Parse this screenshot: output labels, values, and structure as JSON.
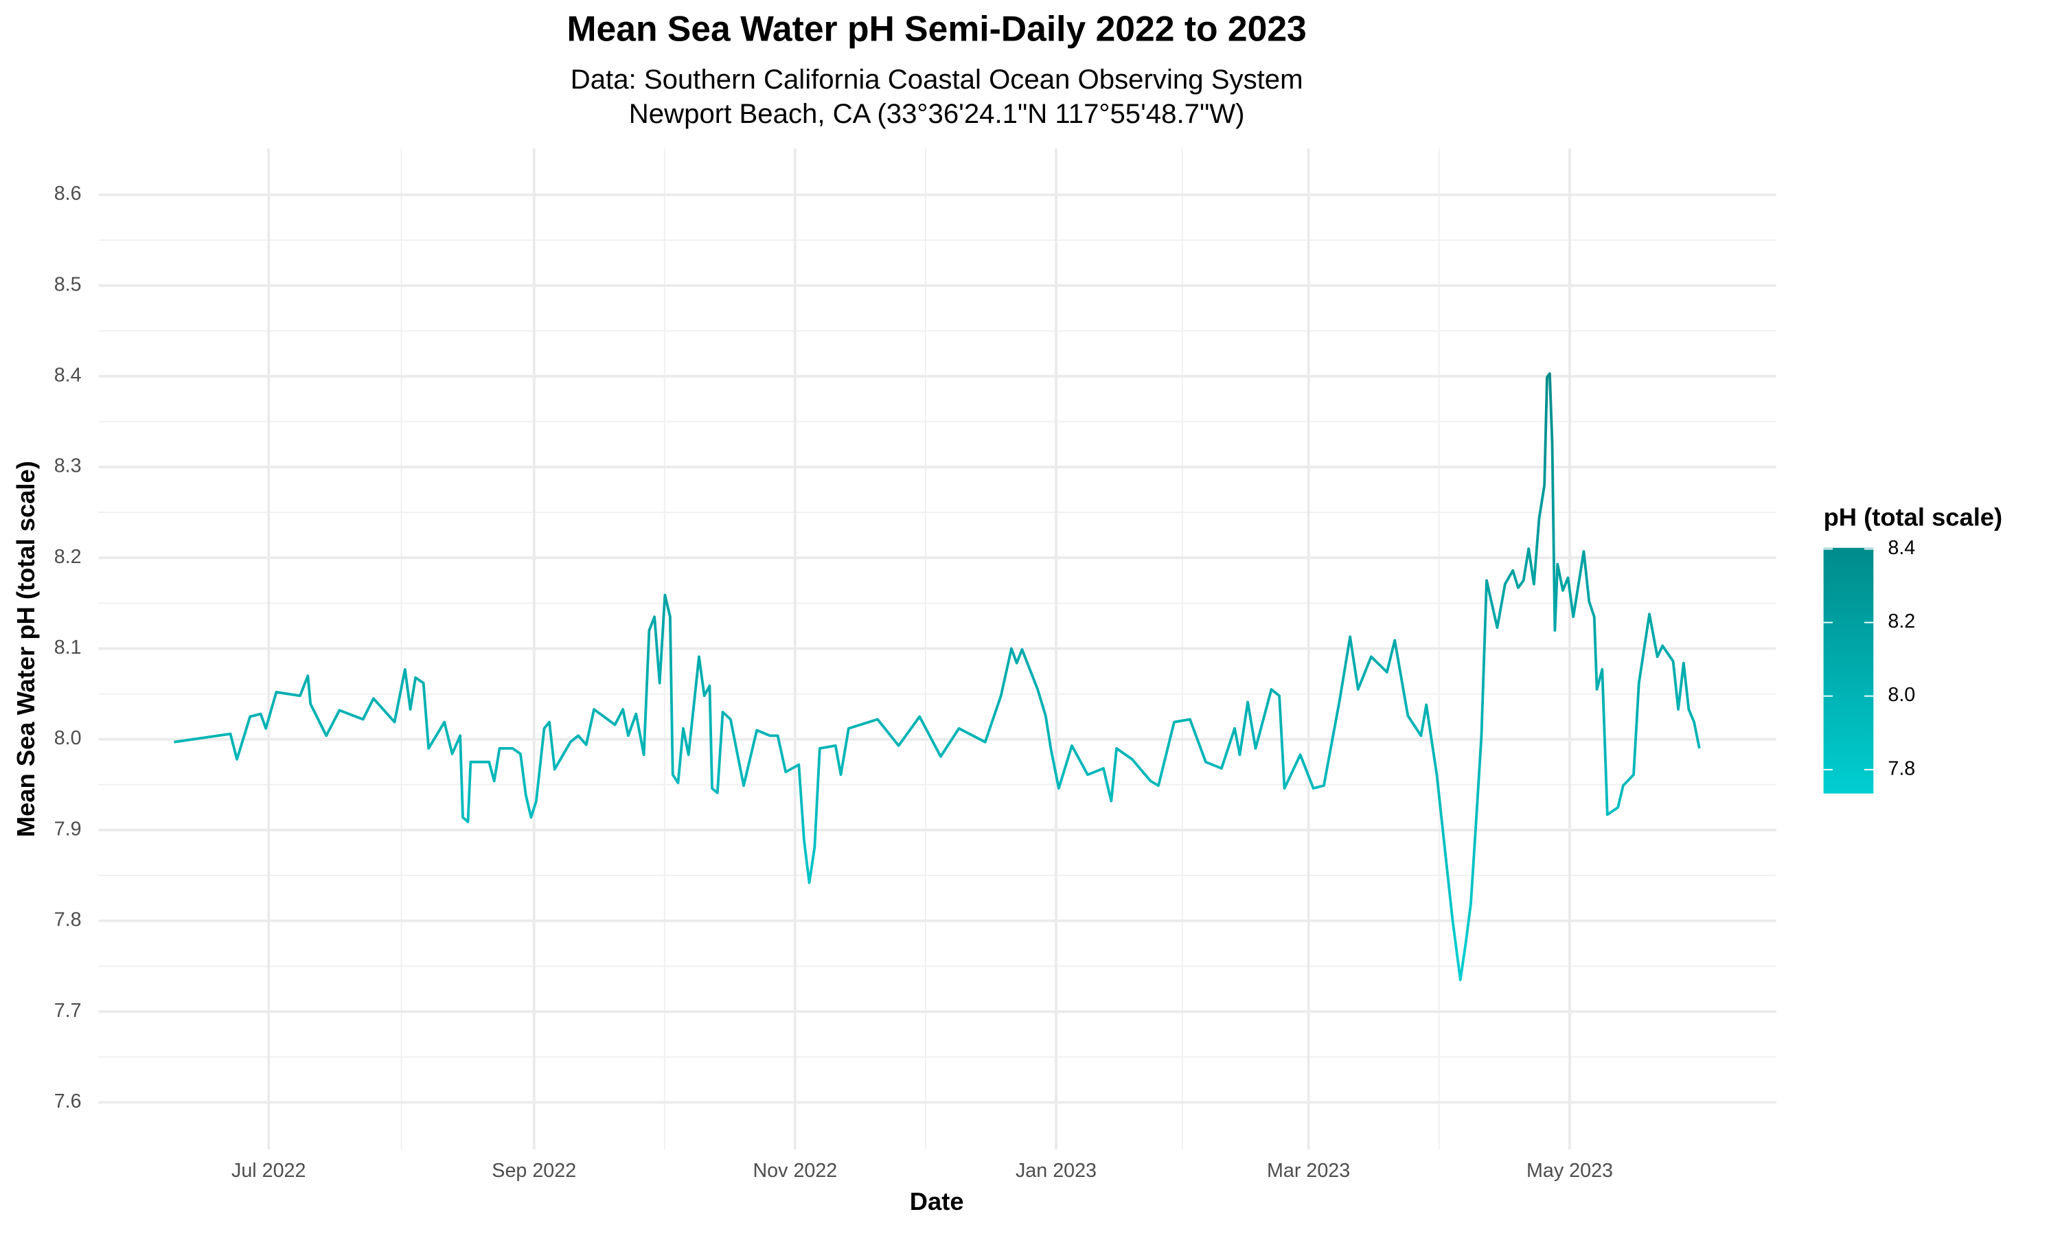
{
  "chart_data": {
    "type": "line",
    "title": "Mean Sea Water pH Semi-Daily 2022 to 2023",
    "subtitle": [
      "Data:  Southern California Coastal Ocean Observing System",
      "Newport Beach, CA (33°36'24.1\"N 117°55'48.7\"W)"
    ],
    "x_label": "Date",
    "y_label": "Mean Sea Water pH (total scale)",
    "legend_title": "pH (total scale)",
    "color_low": "#00CED1",
    "color_high": "#008B8B",
    "color_ticks": [
      7.8,
      {
        "value": 8.0,
        "label": "8.0"
      },
      8.2,
      8.4
    ],
    "grid": true,
    "xlim": [
      2022.387,
      2023.461
    ],
    "xticks": [
      {
        "value": 2022.4959,
        "label": "Jul 2022"
      },
      {
        "value": 2022.6658,
        "label": "Sep 2022"
      },
      {
        "value": 2022.8329,
        "label": "Nov 2022"
      },
      {
        "value": 2023.0,
        "label": "Jan 2023"
      },
      {
        "value": 2023.1616,
        "label": "Mar 2023"
      },
      {
        "value": 2023.3288,
        "label": "May 2023"
      }
    ],
    "ylim": [
      7.548,
      8.651
    ],
    "yticks": [
      7.6,
      7.7,
      7.8,
      7.9,
      {
        "value": 8.0,
        "label": "8.0"
      },
      8.1,
      8.2,
      8.3,
      8.4,
      8.5,
      8.6
    ],
    "x": [
      2022.4353,
      2022.4714,
      2022.4756,
      2022.484,
      2022.4908,
      2022.4941,
      2022.5008,
      2022.516,
      2022.521,
      2022.5227,
      2022.5328,
      2022.5412,
      2022.5563,
      2022.563,
      2022.5765,
      2022.5832,
      2022.5866,
      2022.5899,
      2022.595,
      2022.5983,
      2022.6084,
      2022.6134,
      2022.6185,
      2022.6202,
      2022.6235,
      2022.6252,
      2022.637,
      2022.6403,
      2022.6437,
      2022.6521,
      2022.6571,
      2022.6605,
      2022.6639,
      2022.6672,
      2022.6723,
      2022.6756,
      2022.679,
      2022.6891,
      2022.6941,
      2022.6992,
      2022.7042,
      2022.7176,
      2022.7227,
      2022.7261,
      2022.7311,
      2022.7361,
      2022.7395,
      2022.7429,
      2022.7462,
      2022.7496,
      2022.7529,
      2022.7546,
      2022.758,
      2022.7613,
      2022.7647,
      2022.7714,
      2022.7748,
      2022.7782,
      2022.7798,
      2022.7832,
      2022.7866,
      2022.7916,
      2022.8,
      2022.8084,
      2022.8168,
      2022.8218,
      2022.8269,
      2022.8353,
      2022.8387,
      2022.842,
      2022.8454,
      2022.8487,
      2022.8588,
      2022.8622,
      2022.8672,
      2022.8857,
      2022.8992,
      2022.9126,
      2022.9261,
      2022.9378,
      2022.9546,
      2022.9647,
      2022.9714,
      2022.9748,
      2022.9782,
      2022.9882,
      2022.9933,
      2022.9966,
      2023.0017,
      2023.0101,
      2023.0202,
      2023.0303,
      2023.0353,
      2023.0387,
      2023.0487,
      2023.0605,
      2023.0655,
      2023.0756,
      2023.0857,
      2023.0958,
      2023.1059,
      2023.1143,
      2023.1176,
      2023.1227,
      2023.1277,
      2023.1378,
      2023.1429,
      2023.1462,
      2023.1563,
      2023.1647,
      2023.1714,
      2023.1815,
      2023.1882,
      2023.1933,
      2023.2017,
      2023.2118,
      2023.2168,
      2023.2252,
      2023.2336,
      2023.237,
      2023.2437,
      2023.2538,
      2023.2588,
      2023.2622,
      2023.2655,
      2023.2689,
      2023.2723,
      2023.2756,
      2023.2824,
      2023.2874,
      2023.2924,
      2023.2958,
      2023.2992,
      2023.3025,
      2023.3059,
      2023.3092,
      2023.3126,
      2023.3143,
      2023.316,
      2023.3176,
      2023.3193,
      2023.321,
      2023.3244,
      2023.3277,
      2023.3311,
      2023.3378,
      2023.3412,
      2023.3445,
      2023.3462,
      2023.3496,
      2023.3529,
      2023.3597,
      2023.363,
      2023.3697,
      2023.3731,
      2023.3798,
      2023.3849,
      2023.3882,
      2023.395,
      2023.3983,
      2023.4017,
      2023.405,
      2023.4084,
      2023.4118
    ],
    "values": [
      7.997,
      8.006,
      7.978,
      8.025,
      8.028,
      8.012,
      8.052,
      8.048,
      8.07,
      8.039,
      8.004,
      8.032,
      8.022,
      8.045,
      8.019,
      8.077,
      8.033,
      8.068,
      8.062,
      7.99,
      8.019,
      7.984,
      8.004,
      7.914,
      7.909,
      7.975,
      7.975,
      7.954,
      7.99,
      7.99,
      7.984,
      7.939,
      7.914,
      7.932,
      8.012,
      8.019,
      7.967,
      7.997,
      8.004,
      7.994,
      8.033,
      8.016,
      8.033,
      8.004,
      8.028,
      7.983,
      8.12,
      8.135,
      8.062,
      8.159,
      8.135,
      7.961,
      7.952,
      8.012,
      7.983,
      8.091,
      8.048,
      8.059,
      7.946,
      7.941,
      8.03,
      8.022,
      7.949,
      8.01,
      8.004,
      8.004,
      7.964,
      7.972,
      7.888,
      7.842,
      7.881,
      7.99,
      7.993,
      7.961,
      8.012,
      8.022,
      7.993,
      8.025,
      7.981,
      8.012,
      7.997,
      8.048,
      8.1,
      8.084,
      8.099,
      8.055,
      8.026,
      7.99,
      7.946,
      7.993,
      7.961,
      7.968,
      7.932,
      7.99,
      7.978,
      7.954,
      7.949,
      8.019,
      8.022,
      7.975,
      7.968,
      8.012,
      7.983,
      8.041,
      7.99,
      8.055,
      8.048,
      7.946,
      7.983,
      7.946,
      7.949,
      8.043,
      8.113,
      8.055,
      8.091,
      8.074,
      8.109,
      8.026,
      8.004,
      8.038,
      7.961,
      7.801,
      7.735,
      7.775,
      7.819,
      7.91,
      8.004,
      8.175,
      8.123,
      8.171,
      8.186,
      8.167,
      8.175,
      8.21,
      8.171,
      8.243,
      8.28,
      8.399,
      8.403,
      8.326,
      8.12,
      8.193,
      8.164,
      8.178,
      8.135,
      8.207,
      8.152,
      8.135,
      8.055,
      8.077,
      7.917,
      7.925,
      7.949,
      7.961,
      8.062,
      8.138,
      8.091,
      8.103,
      8.086,
      8.033,
      8.084,
      8.033,
      8.019,
      7.99
    ]
  }
}
